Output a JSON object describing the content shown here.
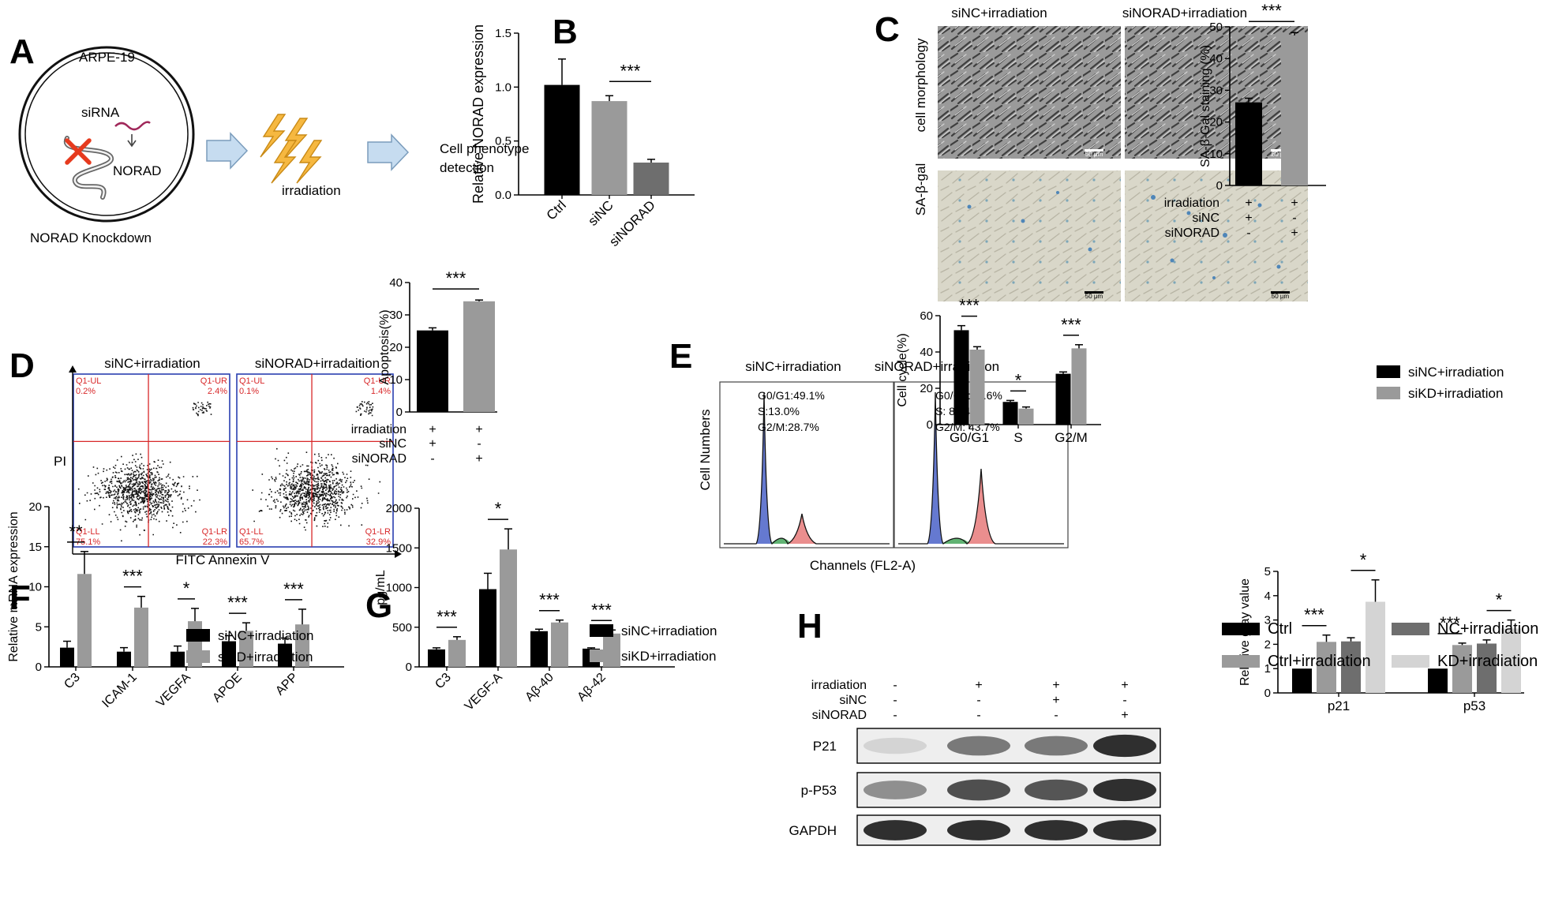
{
  "panels": {
    "A": {
      "letter": "A",
      "cell_line": "ARPE-19",
      "sirna_label": "siRNA",
      "norad_label": "NORAD",
      "knockdown_label": "NORAD Knockdown",
      "irradiation_label": "irradiation",
      "detection_line1": "Cell phenotype",
      "detection_line2": "detection",
      "colors": {
        "x_mark": "#e63a1e",
        "arrow": "#c6dcf0",
        "arrow_edge": "#7a9cbc",
        "bolt": "#f6b840",
        "bolt_edge": "#c98a16",
        "sirna": "#a0285a"
      }
    },
    "B": {
      "letter": "B"
    },
    "C": {
      "letter": "C",
      "col_labels": [
        "siNC+irradiation",
        "siNORAD+irradiation"
      ],
      "row_labels": [
        "cell morphology",
        "SA-β-gal"
      ],
      "scale_bar": "50 μm"
    },
    "D": {
      "letter": "D",
      "flow_titles": [
        "siNC+irradiation",
        "siNORAD+irradaition"
      ],
      "y_axis": "PI",
      "x_axis": "FITC Annexin V",
      "quadrants": [
        {
          "ul": "Q1-UL",
          "ul_val": "0.2%",
          "ur": "Q1-UR",
          "ur_val": "2.4%",
          "ll": "Q1-LL",
          "ll_val": "75.1%",
          "lr": "Q1-LR",
          "lr_val": "22.3%"
        },
        {
          "ul": "Q1-UL",
          "ul_val": "0.1%",
          "ur": "Q1-UR",
          "ur_val": "1.4%",
          "ll": "Q1-LL",
          "ll_val": "65.7%",
          "lr": "Q1-LR",
          "lr_val": "32.9%"
        }
      ],
      "colors": {
        "frame": "#2a3fb0",
        "quad": "#d8282a",
        "text": "#d8282a"
      }
    },
    "E": {
      "letter": "E",
      "hist_titles": [
        "siNC+irradiation",
        "siNORAD+irradiation"
      ],
      "hist_stats": [
        [
          "G0/G1:49.1%",
          "S:13.0%",
          "G2/M:28.7%"
        ],
        [
          "G0/G1:39.6%",
          "S:  8.34%",
          "G2/M:  43.7%"
        ]
      ],
      "y_axis": "Cell Numbers",
      "x_axis": "Channels (FL2-A)",
      "colors": {
        "g1": "#4a62c8",
        "s": "#3aa050",
        "g2": "#e67a7a"
      }
    },
    "F": {
      "letter": "F"
    },
    "G": {
      "letter": "G"
    },
    "H": {
      "letter": "H",
      "blot_rows": [
        "P21",
        "p-P53",
        "GAPDH"
      ],
      "condition_rows": [
        {
          "label": "irradiation",
          "signs": [
            "-",
            "+",
            "+",
            "+"
          ]
        },
        {
          "label": "siNC",
          "signs": [
            "-",
            "-",
            "+",
            "-"
          ]
        },
        {
          "label": "siNORAD",
          "signs": [
            "-",
            "-",
            "-",
            "+"
          ]
        }
      ]
    }
  },
  "chart_data": [
    {
      "id": "B",
      "type": "bar",
      "ylabel": "Relative NORAD expression",
      "categories": [
        "Ctrl",
        "siNC",
        "siNORAD"
      ],
      "values": [
        1.02,
        0.87,
        0.3
      ],
      "errors": [
        0.24,
        0.05,
        0.03
      ],
      "colors": [
        "#000000",
        "#9a9a9a",
        "#6e6e6e"
      ],
      "ylim": [
        0,
        1.5
      ],
      "yticks": [
        "0.0",
        "0.5",
        "1.0",
        "1.5"
      ],
      "significance": [
        {
          "from": 1,
          "to": 2,
          "label": "***"
        }
      ]
    },
    {
      "id": "C",
      "type": "bar",
      "ylabel": "SA-β-Gal staining (%)",
      "values": [
        26.2,
        47.3
      ],
      "errors": [
        1.3,
        0.9
      ],
      "colors": [
        "#000000",
        "#9a9a9a"
      ],
      "ylim": [
        0,
        50
      ],
      "yticks": [
        "0",
        "10",
        "20",
        "30",
        "40",
        "50"
      ],
      "conditions": [
        {
          "label": "irradiation",
          "signs": [
            "+",
            "+"
          ]
        },
        {
          "label": "siNC",
          "signs": [
            "+",
            "-"
          ]
        },
        {
          "label": "siNORAD",
          "signs": [
            "-",
            "+"
          ]
        }
      ],
      "significance": [
        {
          "from": 0,
          "to": 1,
          "label": "***"
        }
      ]
    },
    {
      "id": "D",
      "type": "bar",
      "ylabel": "Apoptosis(%)",
      "values": [
        25.2,
        34.2
      ],
      "errors": [
        0.8,
        0.4
      ],
      "colors": [
        "#000000",
        "#9a9a9a"
      ],
      "ylim": [
        0,
        40
      ],
      "yticks": [
        "0",
        "10",
        "20",
        "30",
        "40"
      ],
      "conditions": [
        {
          "label": "irradiation",
          "signs": [
            "+",
            "+"
          ]
        },
        {
          "label": "siNC",
          "signs": [
            "+",
            "-"
          ]
        },
        {
          "label": "siNORAD",
          "signs": [
            "-",
            "+"
          ]
        }
      ],
      "significance": [
        {
          "from": 0,
          "to": 1,
          "label": "***"
        }
      ]
    },
    {
      "id": "E",
      "type": "bar",
      "ylabel": "Cell cycle(%)",
      "categories": [
        "G0/G1",
        "S",
        "G2/M"
      ],
      "series": [
        {
          "name": "siNC+irradiation",
          "color": "#000000",
          "values": [
            52,
            12.5,
            28
          ],
          "errors": [
            2.5,
            0.8,
            1
          ]
        },
        {
          "name": "siKD+irradiation",
          "color": "#9a9a9a",
          "values": [
            41.3,
            8.8,
            42
          ],
          "errors": [
            1.6,
            0.9,
            2
          ]
        }
      ],
      "ylim": [
        0,
        60
      ],
      "yticks": [
        "0",
        "20",
        "40",
        "60"
      ],
      "significance": [
        {
          "cat": 0,
          "label": "***"
        },
        {
          "cat": 1,
          "label": "*"
        },
        {
          "cat": 2,
          "label": "***"
        }
      ]
    },
    {
      "id": "F",
      "type": "bar",
      "ylabel": "Relative mRNA expression",
      "categories": [
        "C3",
        "ICAM-1",
        "VEGFA",
        "APOE",
        "APP"
      ],
      "series": [
        {
          "name": "siNC+irradiation",
          "color": "#000000",
          "values": [
            2.4,
            1.9,
            1.9,
            3.2,
            2.9
          ],
          "errors": [
            0.8,
            0.5,
            0.7,
            0.7,
            0.7
          ]
        },
        {
          "name": "siKD+irradiation",
          "color": "#9a9a9a",
          "values": [
            11.6,
            7.4,
            5.7,
            4.5,
            5.3
          ],
          "errors": [
            2.8,
            1.4,
            1.6,
            1.0,
            1.9
          ]
        }
      ],
      "ylim": [
        0,
        20
      ],
      "yticks": [
        "0",
        "5",
        "10",
        "15",
        "20"
      ],
      "significance": [
        {
          "cat": 0,
          "label": "**"
        },
        {
          "cat": 1,
          "label": "***"
        },
        {
          "cat": 2,
          "label": "*"
        },
        {
          "cat": 3,
          "label": "***"
        },
        {
          "cat": 4,
          "label": "***"
        }
      ]
    },
    {
      "id": "G",
      "type": "bar",
      "ylabel": "pg/mL",
      "categories": [
        "C3",
        "VEGF-A",
        "Aβ-40",
        "Aβ-42"
      ],
      "series": [
        {
          "name": "siNC+irradiation",
          "color": "#000000",
          "values": [
            220,
            980,
            450,
            230
          ],
          "errors": [
            20,
            200,
            25,
            10
          ]
        },
        {
          "name": "siKD+irradiation",
          "color": "#9a9a9a",
          "values": [
            340,
            1480,
            560,
            420
          ],
          "errors": [
            40,
            260,
            30,
            45
          ]
        }
      ],
      "ylim": [
        0,
        2000
      ],
      "yticks": [
        "0",
        "500",
        "1000",
        "1500",
        "2000"
      ],
      "significance": [
        {
          "cat": 0,
          "label": "***"
        },
        {
          "cat": 1,
          "label": "*"
        },
        {
          "cat": 2,
          "label": "***"
        },
        {
          "cat": 3,
          "label": "***"
        }
      ]
    },
    {
      "id": "H",
      "type": "bar",
      "ylabel": "Relative gray value",
      "categories": [
        "p21",
        "p53"
      ],
      "series": [
        {
          "name": "Ctrl",
          "color": "#000000",
          "values": [
            1.0,
            1.0
          ],
          "errors": [
            0,
            0
          ]
        },
        {
          "name": "Ctrl+irradiation",
          "color": "#9a9a9a",
          "values": [
            2.1,
            1.97
          ],
          "errors": [
            0.28,
            0.08
          ]
        },
        {
          "name": "NC+irradiation",
          "color": "#6e6e6e",
          "values": [
            2.12,
            2.03
          ],
          "errors": [
            0.15,
            0.15
          ]
        },
        {
          "name": "KD+irradiation",
          "color": "#d4d4d4",
          "values": [
            3.75,
            2.65
          ],
          "errors": [
            0.9,
            0.35
          ]
        }
      ],
      "ylim": [
        0,
        5
      ],
      "yticks": [
        "0",
        "1",
        "2",
        "3",
        "4",
        "5"
      ],
      "significance": [
        {
          "cat": 0,
          "from": 0,
          "to": 1,
          "label": "***"
        },
        {
          "cat": 0,
          "from": 2,
          "to": 3,
          "label": "*"
        },
        {
          "cat": 1,
          "from": 0,
          "to": 1,
          "label": "***"
        },
        {
          "cat": 1,
          "from": 2,
          "to": 3,
          "label": "*"
        }
      ]
    }
  ]
}
